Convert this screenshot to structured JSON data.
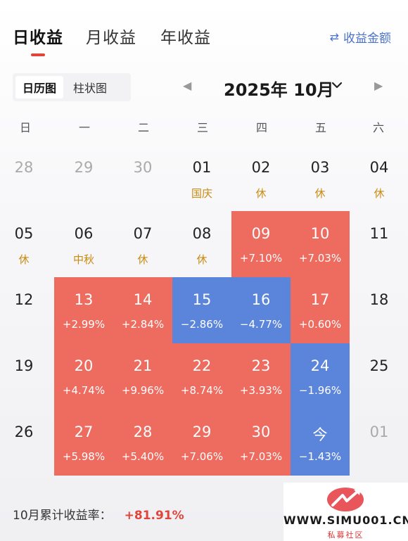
{
  "tabs": [
    {
      "label": "日收益",
      "active": true
    },
    {
      "label": "月收益",
      "active": false
    },
    {
      "label": "年收益",
      "active": false
    }
  ],
  "toggle": {
    "icon": "swap-icon",
    "label": "收益金额"
  },
  "view_switch": {
    "calendar": "日历图",
    "bar": "柱状图",
    "active": "calendar"
  },
  "month": {
    "label": "2025年 10月"
  },
  "weekdays": [
    "日",
    "一",
    "二",
    "三",
    "四",
    "五",
    "六"
  ],
  "weeks": [
    [
      {
        "day": "28",
        "sub": "",
        "state": "muted"
      },
      {
        "day": "29",
        "sub": "",
        "state": "muted"
      },
      {
        "day": "30",
        "sub": "",
        "state": "muted"
      },
      {
        "day": "01",
        "sub": "国庆",
        "state": "holiday"
      },
      {
        "day": "02",
        "sub": "休",
        "state": "holiday"
      },
      {
        "day": "03",
        "sub": "休",
        "state": "holiday"
      },
      {
        "day": "04",
        "sub": "休",
        "state": "holiday"
      }
    ],
    [
      {
        "day": "05",
        "sub": "休",
        "state": "holiday"
      },
      {
        "day": "06",
        "sub": "中秋",
        "state": "holiday"
      },
      {
        "day": "07",
        "sub": "休",
        "state": "holiday"
      },
      {
        "day": "08",
        "sub": "休",
        "state": "holiday"
      },
      {
        "day": "09",
        "sub": "+7.10%",
        "state": "up"
      },
      {
        "day": "10",
        "sub": "+7.03%",
        "state": "up"
      },
      {
        "day": "11",
        "sub": "",
        "state": "normal"
      }
    ],
    [
      {
        "day": "12",
        "sub": "",
        "state": "normal"
      },
      {
        "day": "13",
        "sub": "+2.99%",
        "state": "up"
      },
      {
        "day": "14",
        "sub": "+2.84%",
        "state": "up"
      },
      {
        "day": "15",
        "sub": "−2.86%",
        "state": "down"
      },
      {
        "day": "16",
        "sub": "−4.77%",
        "state": "down"
      },
      {
        "day": "17",
        "sub": "+0.60%",
        "state": "up"
      },
      {
        "day": "18",
        "sub": "",
        "state": "normal"
      }
    ],
    [
      {
        "day": "19",
        "sub": "",
        "state": "normal"
      },
      {
        "day": "20",
        "sub": "+4.74%",
        "state": "up"
      },
      {
        "day": "21",
        "sub": "+9.96%",
        "state": "up"
      },
      {
        "day": "22",
        "sub": "+8.74%",
        "state": "up"
      },
      {
        "day": "23",
        "sub": "+3.93%",
        "state": "up"
      },
      {
        "day": "24",
        "sub": "−1.96%",
        "state": "down"
      },
      {
        "day": "25",
        "sub": "",
        "state": "normal"
      }
    ],
    [
      {
        "day": "26",
        "sub": "",
        "state": "normal"
      },
      {
        "day": "27",
        "sub": "+5.98%",
        "state": "up"
      },
      {
        "day": "28",
        "sub": "+5.40%",
        "state": "up"
      },
      {
        "day": "29",
        "sub": "+7.06%",
        "state": "up"
      },
      {
        "day": "30",
        "sub": "+7.03%",
        "state": "up"
      },
      {
        "day": "今",
        "sub": "−1.43%",
        "state": "down"
      },
      {
        "day": "01",
        "sub": "",
        "state": "muted"
      }
    ]
  ],
  "footer": {
    "label": "10月累计收益率：",
    "value": "+81.91%"
  },
  "watermark": {
    "text": "WWW.SIMU001.CN",
    "sub": "私募社区"
  },
  "colors": {
    "up": "#ee6b5f",
    "down": "#5b85da",
    "accent": "#e0453a",
    "holiday": "#c98a10",
    "link": "#4a72c9"
  }
}
